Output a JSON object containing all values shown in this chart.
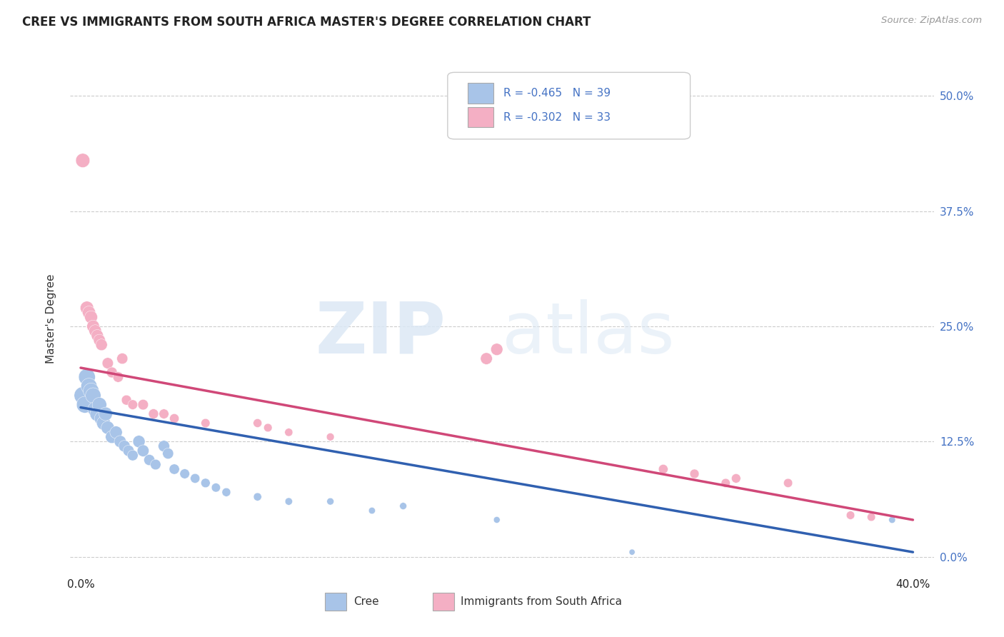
{
  "title": "CREE VS IMMIGRANTS FROM SOUTH AFRICA MASTER'S DEGREE CORRELATION CHART",
  "source": "Source: ZipAtlas.com",
  "ylabel": "Master's Degree",
  "ytick_labels": [
    "0.0%",
    "12.5%",
    "25.0%",
    "37.5%",
    "50.0%"
  ],
  "ytick_values": [
    0.0,
    0.125,
    0.25,
    0.375,
    0.5
  ],
  "xtick_labels": [
    "0.0%",
    "",
    "",
    "",
    "40.0%"
  ],
  "xtick_values": [
    0.0,
    0.1,
    0.2,
    0.3,
    0.4
  ],
  "xlim": [
    -0.005,
    0.41
  ],
  "ylim": [
    -0.018,
    0.535
  ],
  "legend_label_blue": "Cree",
  "legend_label_pink": "Immigrants from South Africa",
  "R_blue": -0.465,
  "N_blue": 39,
  "R_pink": -0.302,
  "N_pink": 33,
  "blue_color": "#a8c4e8",
  "pink_color": "#f4afc4",
  "blue_line_color": "#3060b0",
  "pink_line_color": "#d04878",
  "label_color": "#4472c4",
  "background_color": "#ffffff",
  "blue_scatter": [
    [
      0.001,
      0.175
    ],
    [
      0.002,
      0.165
    ],
    [
      0.003,
      0.195
    ],
    [
      0.004,
      0.185
    ],
    [
      0.005,
      0.18
    ],
    [
      0.006,
      0.175
    ],
    [
      0.007,
      0.16
    ],
    [
      0.008,
      0.155
    ],
    [
      0.009,
      0.165
    ],
    [
      0.01,
      0.15
    ],
    [
      0.011,
      0.145
    ],
    [
      0.012,
      0.155
    ],
    [
      0.013,
      0.14
    ],
    [
      0.015,
      0.13
    ],
    [
      0.017,
      0.135
    ],
    [
      0.019,
      0.125
    ],
    [
      0.021,
      0.12
    ],
    [
      0.023,
      0.115
    ],
    [
      0.025,
      0.11
    ],
    [
      0.028,
      0.125
    ],
    [
      0.03,
      0.115
    ],
    [
      0.033,
      0.105
    ],
    [
      0.036,
      0.1
    ],
    [
      0.04,
      0.12
    ],
    [
      0.042,
      0.112
    ],
    [
      0.045,
      0.095
    ],
    [
      0.05,
      0.09
    ],
    [
      0.055,
      0.085
    ],
    [
      0.06,
      0.08
    ],
    [
      0.065,
      0.075
    ],
    [
      0.07,
      0.07
    ],
    [
      0.085,
      0.065
    ],
    [
      0.1,
      0.06
    ],
    [
      0.12,
      0.06
    ],
    [
      0.14,
      0.05
    ],
    [
      0.155,
      0.055
    ],
    [
      0.2,
      0.04
    ],
    [
      0.265,
      0.005
    ],
    [
      0.39,
      0.04
    ]
  ],
  "pink_scatter": [
    [
      0.001,
      0.43
    ],
    [
      0.003,
      0.27
    ],
    [
      0.004,
      0.265
    ],
    [
      0.005,
      0.26
    ],
    [
      0.006,
      0.25
    ],
    [
      0.007,
      0.245
    ],
    [
      0.008,
      0.24
    ],
    [
      0.009,
      0.235
    ],
    [
      0.01,
      0.23
    ],
    [
      0.013,
      0.21
    ],
    [
      0.015,
      0.2
    ],
    [
      0.018,
      0.195
    ],
    [
      0.02,
      0.215
    ],
    [
      0.022,
      0.17
    ],
    [
      0.025,
      0.165
    ],
    [
      0.03,
      0.165
    ],
    [
      0.035,
      0.155
    ],
    [
      0.04,
      0.155
    ],
    [
      0.045,
      0.15
    ],
    [
      0.06,
      0.145
    ],
    [
      0.085,
      0.145
    ],
    [
      0.09,
      0.14
    ],
    [
      0.1,
      0.135
    ],
    [
      0.12,
      0.13
    ],
    [
      0.195,
      0.215
    ],
    [
      0.2,
      0.225
    ],
    [
      0.28,
      0.095
    ],
    [
      0.295,
      0.09
    ],
    [
      0.31,
      0.08
    ],
    [
      0.315,
      0.085
    ],
    [
      0.34,
      0.08
    ],
    [
      0.37,
      0.045
    ],
    [
      0.38,
      0.043
    ]
  ],
  "blue_dot_sizes": [
    300,
    280,
    280,
    260,
    250,
    240,
    230,
    220,
    210,
    200,
    195,
    185,
    175,
    165,
    155,
    145,
    135,
    125,
    115,
    150,
    140,
    120,
    110,
    130,
    120,
    105,
    95,
    90,
    85,
    80,
    75,
    65,
    55,
    50,
    45,
    50,
    42,
    35,
    45
  ],
  "pink_dot_sizes": [
    200,
    180,
    170,
    165,
    160,
    155,
    145,
    140,
    135,
    125,
    115,
    110,
    120,
    100,
    95,
    110,
    100,
    95,
    90,
    80,
    75,
    70,
    65,
    60,
    140,
    145,
    90,
    85,
    80,
    85,
    80,
    70,
    68
  ],
  "blue_trend": [
    0.0,
    0.4,
    0.162,
    0.005
  ],
  "pink_trend": [
    0.0,
    0.4,
    0.205,
    0.04
  ]
}
